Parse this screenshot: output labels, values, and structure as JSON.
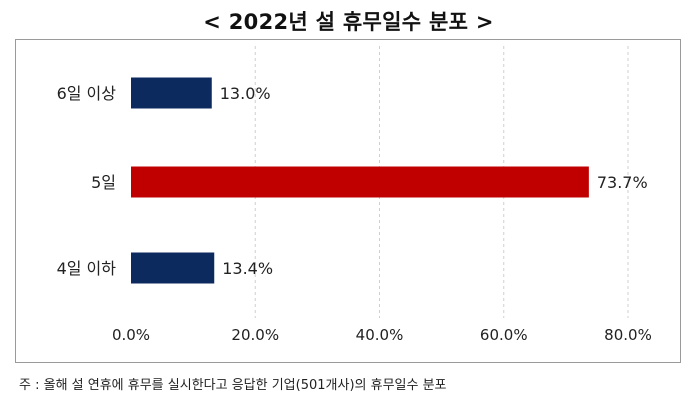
{
  "title": "< 2022년 설 휴무일수 분포 >",
  "footnote": "주 : 올해 설 연휴에 휴무를 실시한다고 응답한 기업(501개사)의 휴무일수 분포",
  "chart_data": {
    "type": "bar",
    "orientation": "horizontal",
    "categories": [
      "6일 이상",
      "5일",
      "4일 이하"
    ],
    "values": [
      13.0,
      73.7,
      13.4
    ],
    "data_labels": [
      "13.0%",
      "73.7%",
      "13.4%"
    ],
    "colors": [
      "#0d2a5f",
      "#c00000",
      "#0d2a5f"
    ],
    "xlim": [
      0,
      80
    ],
    "xticks": [
      0,
      20,
      40,
      60,
      80
    ],
    "xtick_labels": [
      "0.0%",
      "20.0%",
      "40.0%",
      "60.0%",
      "80.0%"
    ],
    "grid": "vertical-dashed",
    "legend": "none"
  }
}
